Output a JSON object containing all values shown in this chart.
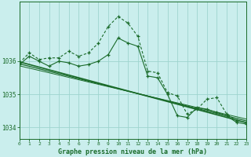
{
  "hours": [
    0,
    1,
    2,
    3,
    4,
    5,
    6,
    7,
    8,
    9,
    10,
    11,
    12,
    13,
    14,
    15,
    16,
    17,
    18,
    19,
    20,
    21,
    22,
    23
  ],
  "line_upper": [
    1035.95,
    1036.25,
    1036.05,
    1036.1,
    1036.1,
    1036.3,
    1036.15,
    1036.25,
    1036.55,
    1037.05,
    1037.35,
    1037.15,
    1036.75,
    1035.7,
    1035.65,
    1035.05,
    1034.95,
    1034.4,
    1034.55,
    1034.85,
    1034.9,
    1034.4,
    1034.2,
    1034.15
  ],
  "line_lower": [
    1035.9,
    1036.15,
    1036.0,
    1035.85,
    1036.0,
    1035.95,
    1035.85,
    1035.9,
    1036.0,
    1036.2,
    1036.7,
    1036.55,
    1036.45,
    1035.55,
    1035.5,
    1035.0,
    1034.35,
    1034.3,
    1034.6,
    1034.55,
    1034.45,
    1034.35,
    1034.15,
    1034.1
  ],
  "trend1": [
    1035.98,
    1035.9,
    1035.82,
    1035.74,
    1035.66,
    1035.58,
    1035.5,
    1035.42,
    1035.34,
    1035.26,
    1035.18,
    1035.1,
    1035.02,
    1034.94,
    1034.86,
    1034.78,
    1034.7,
    1034.62,
    1034.54,
    1034.46,
    1034.38,
    1034.3,
    1034.22,
    1034.14
  ],
  "trend2": [
    1035.92,
    1035.845,
    1035.77,
    1035.695,
    1035.62,
    1035.545,
    1035.47,
    1035.395,
    1035.32,
    1035.245,
    1035.17,
    1035.095,
    1035.02,
    1034.945,
    1034.87,
    1034.795,
    1034.72,
    1034.645,
    1034.57,
    1034.495,
    1034.42,
    1034.345,
    1034.27,
    1034.195
  ],
  "trend3": [
    1035.86,
    1035.79,
    1035.72,
    1035.65,
    1035.58,
    1035.51,
    1035.44,
    1035.37,
    1035.3,
    1035.23,
    1035.16,
    1035.09,
    1035.02,
    1034.95,
    1034.88,
    1034.81,
    1034.74,
    1034.67,
    1034.6,
    1034.53,
    1034.46,
    1034.39,
    1034.32,
    1034.25
  ],
  "bg_color": "#caeeed",
  "grid_color": "#9ed4ce",
  "line_color": "#1a6b2a",
  "xlabel": "Graphe pression niveau de la mer (hPa)",
  "yticks": [
    1034,
    1035,
    1036
  ],
  "ylim": [
    1033.65,
    1037.8
  ],
  "xlim": [
    0,
    23
  ]
}
